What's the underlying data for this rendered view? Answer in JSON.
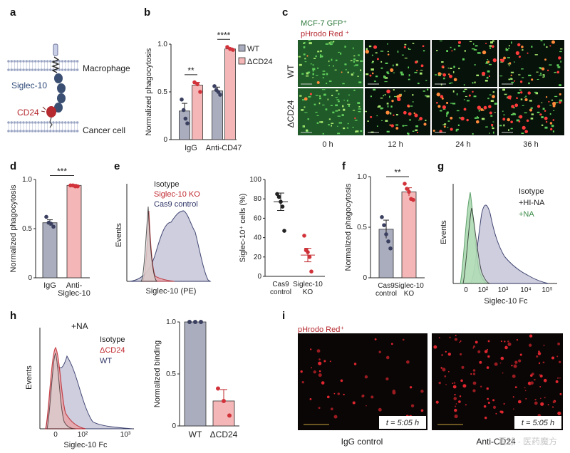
{
  "panel_labels": {
    "a": "a",
    "b": "b",
    "c": "c",
    "d": "d",
    "e": "e",
    "f": "f",
    "g": "g",
    "h": "h",
    "i": "i"
  },
  "panel_a": {
    "macrophage": "Macrophage",
    "siglec10": "Siglec-10",
    "cd24": "CD24",
    "cancer_cell": "Cancer cell"
  },
  "panel_c": {
    "legend_gfp": "MCF-7 GFP⁺",
    "legend_phrodo": "pHrodo Red ⁺",
    "row_wt": "WT",
    "row_dcd24": "ΔCD24",
    "times": [
      "0 h",
      "12 h",
      "24 h",
      "36 h"
    ]
  },
  "panel_e": {
    "legend": [
      "Isotype",
      "Siglec-10 KO",
      "Cas9 control"
    ],
    "hist_ylabel": "Events",
    "hist_xlabel": "Siglec-10 (PE)"
  },
  "panel_g": {
    "legend": [
      "Isotype",
      "+HI-NA",
      "+NA"
    ],
    "ylabel": "Events",
    "xlabel": "Siglec-10 Fc",
    "ticks": [
      "0",
      "10²",
      "10³",
      "10⁴",
      "10⁵"
    ]
  },
  "panel_h": {
    "title": "+NA",
    "legend": [
      "Isotype",
      "ΔCD24",
      "WT"
    ],
    "ylabel": "Events",
    "xlabel": "Siglec-10 Fc",
    "ticks": [
      "0",
      "10²",
      "10³"
    ]
  },
  "panel_i": {
    "legend": "pHrodo Red⁺",
    "time_label": "t = 5:05 h",
    "captions": [
      "IgG control",
      "Anti-CD24"
    ],
    "watermark": "雪球 · 医药魔方"
  },
  "colors": {
    "gray_bar": "#a9adbd",
    "pink_bar": "#f4b6b6",
    "red": "#c0282e",
    "navy": "#2f3566",
    "green": "#3c8c4a"
  },
  "chart_data": [
    {
      "id": "b",
      "type": "bar",
      "title": "",
      "ylabel": "Normalized phagocytosis",
      "ylim": [
        0,
        1.0
      ],
      "yticks": [
        "0",
        "0.5",
        "1.0"
      ],
      "categories": [
        "IgG",
        "Anti-CD47"
      ],
      "legend": [
        "WT",
        "ΔCD24"
      ],
      "series": [
        {
          "name": "WT",
          "values": [
            0.3,
            0.51
          ],
          "errors": [
            0.08,
            0.04
          ],
          "points": [
            [
              0.42,
              0.31,
              0.22,
              0.17
            ],
            [
              0.56,
              0.52,
              0.5,
              0.47
            ]
          ]
        },
        {
          "name": "ΔCD24",
          "values": [
            0.57,
            0.95
          ],
          "errors": [
            0.03,
            0.01
          ],
          "points": [
            [
              0.6,
              0.58,
              0.5
            ],
            [
              0.97,
              0.95,
              0.94
            ]
          ]
        }
      ],
      "significance": [
        "**",
        "****"
      ]
    },
    {
      "id": "d",
      "type": "bar",
      "ylabel": "Normalized phagocytosis",
      "ylim": [
        0,
        1.0
      ],
      "yticks": [
        "0",
        "0.5",
        "1.0"
      ],
      "categories": [
        "IgG",
        "Anti-\nSiglec-10"
      ],
      "values": [
        0.56,
        0.94
      ],
      "errors": [
        0.03,
        0.01
      ],
      "points": [
        [
          0.62,
          0.56,
          0.55,
          0.52
        ],
        [
          0.94,
          0.94,
          0.93,
          0.93
        ]
      ],
      "significance": [
        "***"
      ]
    },
    {
      "id": "e",
      "type": "scatter",
      "ylabel": "Siglec-10⁺ cells (%)",
      "ylim": [
        0,
        100
      ],
      "yticks": [
        "0",
        "20",
        "40",
        "60",
        "80",
        "100"
      ],
      "categories": [
        "Cas9\ncontrol",
        "Siglec-10\nKO"
      ],
      "means": [
        77,
        22
      ],
      "errors": [
        9,
        7
      ],
      "points": [
        [
          85,
          82,
          77,
          72,
          47
        ],
        [
          42,
          27,
          25,
          20,
          5
        ]
      ]
    },
    {
      "id": "f",
      "type": "bar",
      "ylabel": "Normalized phagocytosis",
      "ylim": [
        0,
        1.0
      ],
      "yticks": [
        "0",
        "0.5",
        "1.0"
      ],
      "categories": [
        "Cas9\ncontrol",
        "Siglec-10\nKO"
      ],
      "values": [
        0.48,
        0.85
      ],
      "errors": [
        0.09,
        0.04
      ],
      "points": [
        [
          0.6,
          0.52,
          0.43,
          0.36,
          0.29
        ],
        [
          0.93,
          0.88,
          0.85,
          0.78,
          0.77
        ]
      ],
      "significance": [
        "**"
      ]
    },
    {
      "id": "h-bar",
      "type": "bar",
      "ylabel": "Normalized binding",
      "ylim": [
        0,
        1.0
      ],
      "yticks": [
        "0",
        "0.5",
        "1.0"
      ],
      "categories": [
        "WT",
        "ΔCD24"
      ],
      "values": [
        1.0,
        0.24
      ],
      "errors": [
        0.0,
        0.11
      ],
      "points": [
        [
          1.0,
          1.0,
          1.0
        ],
        [
          0.36,
          0.24,
          0.1
        ]
      ]
    }
  ]
}
